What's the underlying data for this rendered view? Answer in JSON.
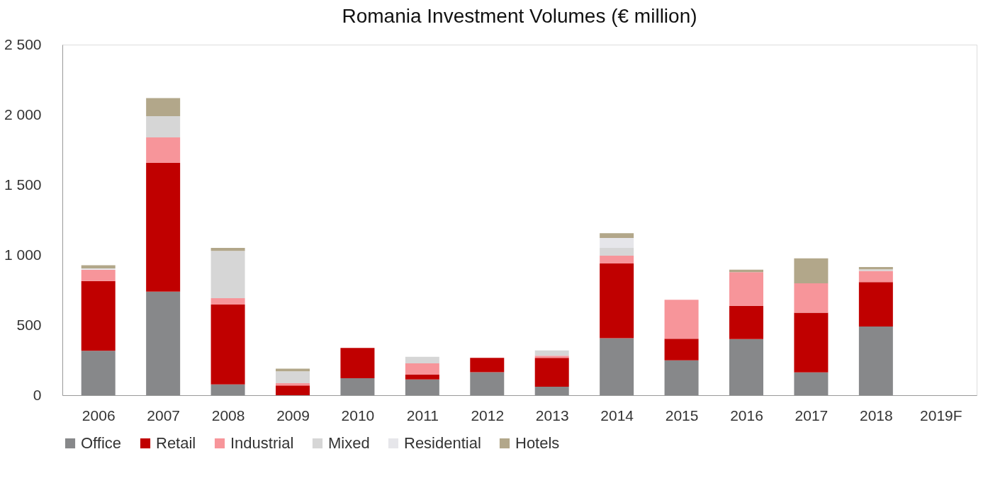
{
  "chart_data": {
    "type": "bar",
    "stacked": true,
    "title": "Romania Investment Volumes (€ million)",
    "categories": [
      "2006",
      "2007",
      "2008",
      "2009",
      "2010",
      "2011",
      "2012",
      "2013",
      "2014",
      "2015",
      "2016",
      "2017",
      "2018",
      "2019F"
    ],
    "series": [
      {
        "name": "Office",
        "color": "#87888a",
        "values": [
          317,
          739,
          77,
          0,
          121,
          113,
          164,
          61,
          406,
          249,
          400,
          163,
          490,
          null
        ]
      },
      {
        "name": "Retail",
        "color": "#c00000",
        "values": [
          498,
          918,
          569,
          70,
          216,
          34,
          102,
          205,
          534,
          154,
          238,
          426,
          317,
          null
        ]
      },
      {
        "name": "Industrial",
        "color": "#f7959a",
        "values": [
          79,
          181,
          46,
          16,
          0,
          80,
          0,
          15,
          55,
          277,
          240,
          209,
          79,
          null
        ]
      },
      {
        "name": "Mixed",
        "color": "#d6d6d6",
        "values": [
          0,
          152,
          337,
          84,
          0,
          47,
          0,
          39,
          55,
          0,
          0,
          0,
          12,
          null
        ]
      },
      {
        "name": "Residential",
        "color": "#e6e6ea",
        "values": [
          10,
          0,
          0,
          0,
          0,
          0,
          0,
          0,
          71,
          0,
          0,
          0,
          0,
          null
        ]
      },
      {
        "name": "Hotels",
        "color": "#b2a78a",
        "values": [
          23,
          129,
          21,
          20,
          0,
          0,
          0,
          0,
          34,
          0,
          17,
          178,
          16,
          null
        ]
      }
    ],
    "ylim": [
      0,
      2500
    ],
    "yticks": [
      {
        "value": 0,
        "label": "0"
      },
      {
        "value": 500,
        "label": "500"
      },
      {
        "value": 1000,
        "label": "1 000"
      },
      {
        "value": 1500,
        "label": "1 500"
      },
      {
        "value": 2000,
        "label": "2 000"
      },
      {
        "value": 2500,
        "label": "2 500"
      }
    ],
    "grid": false,
    "legend": "bottom"
  }
}
